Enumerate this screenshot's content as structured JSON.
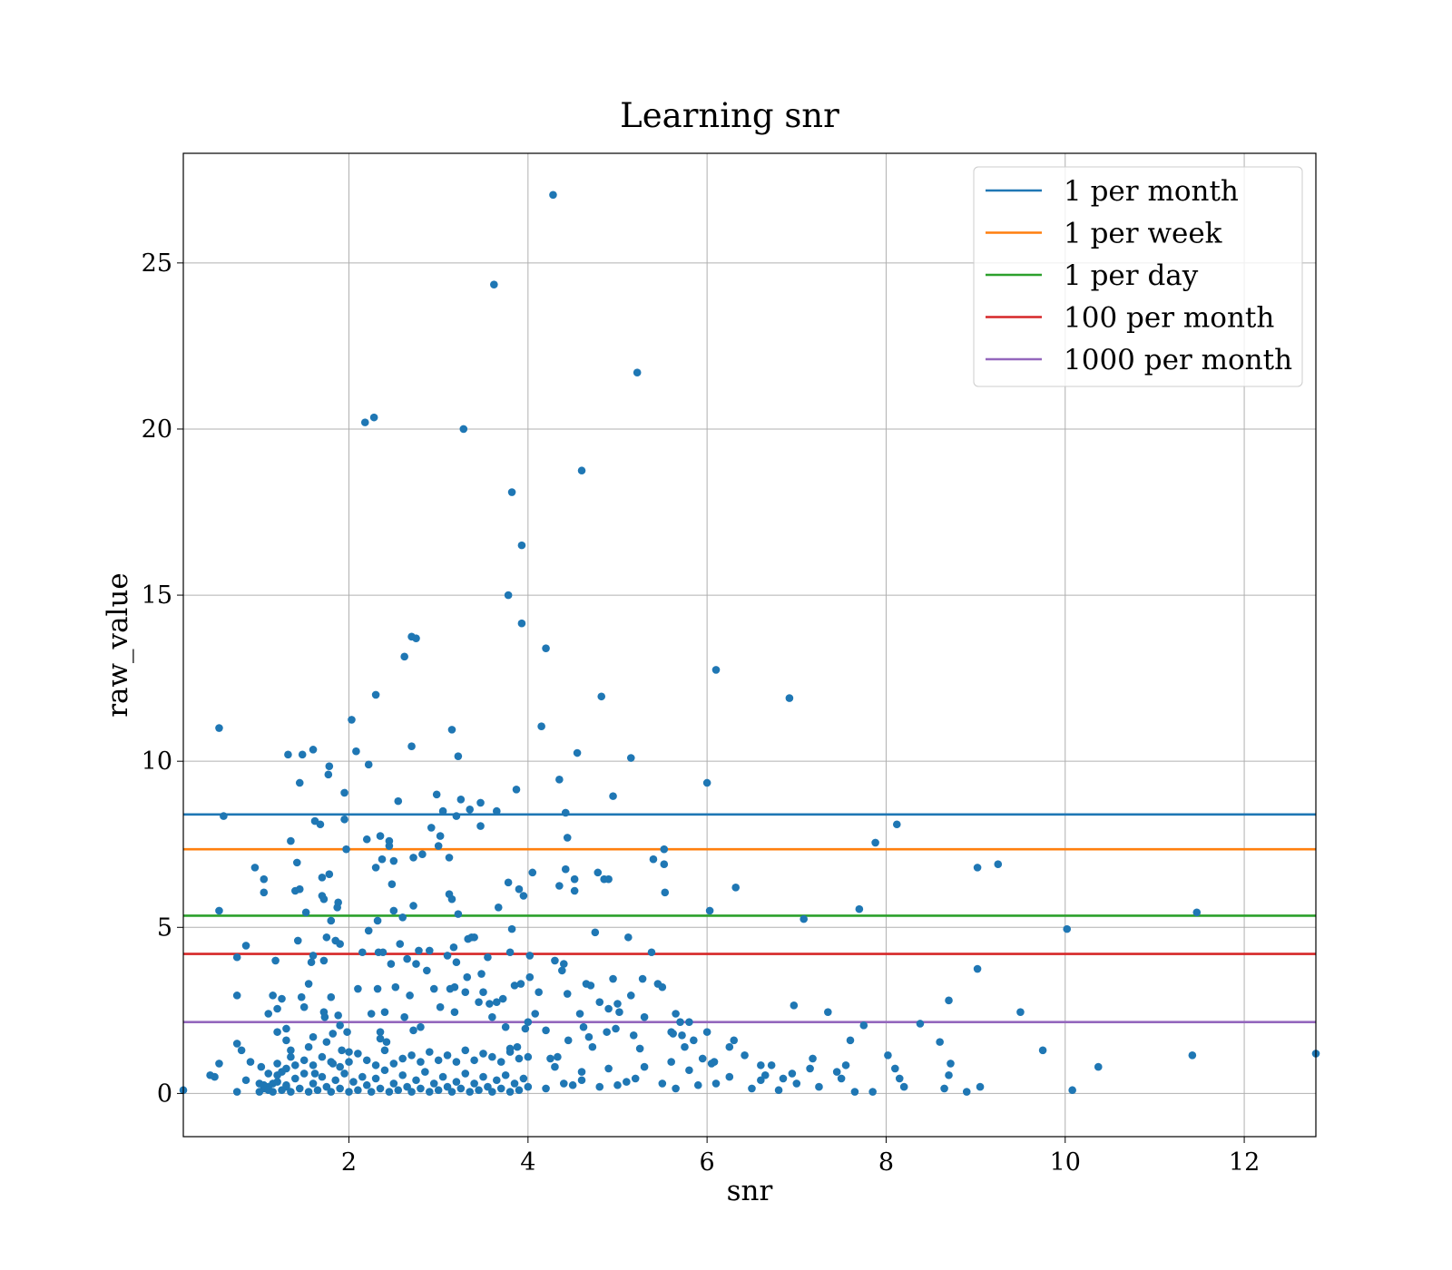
{
  "chart_data": {
    "type": "scatter",
    "title": "Learning snr",
    "xlabel": "snr",
    "ylabel": "raw_value",
    "xlim": [
      0.15,
      12.8
    ],
    "ylim": [
      -1.3,
      28.3
    ],
    "xticks": [
      2,
      4,
      6,
      8,
      10,
      12
    ],
    "yticks": [
      0,
      5,
      10,
      15,
      20,
      25
    ],
    "grid": true,
    "legend_position": "top-right",
    "point_color": "#1f77b4",
    "points": [
      [
        0.15,
        0.1
      ],
      [
        0.55,
        11.0
      ],
      [
        0.6,
        8.35
      ],
      [
        0.55,
        5.5
      ],
      [
        0.75,
        4.1
      ],
      [
        0.85,
        4.45
      ],
      [
        0.75,
        2.95
      ],
      [
        0.5,
        0.5
      ],
      [
        0.55,
        0.9
      ],
      [
        0.45,
        0.55
      ],
      [
        0.75,
        1.5
      ],
      [
        0.8,
        1.3
      ],
      [
        0.75,
        0.05
      ],
      [
        0.85,
        0.4
      ],
      [
        0.9,
        0.95
      ],
      [
        0.95,
        6.8
      ],
      [
        1.0,
        0.3
      ],
      [
        1.05,
        6.45
      ],
      [
        1.05,
        6.05
      ],
      [
        1.02,
        0.8
      ],
      [
        1.05,
        0.15
      ],
      [
        1.1,
        0.2
      ],
      [
        1.15,
        0.3
      ],
      [
        1.1,
        2.4
      ],
      [
        1.15,
        2.95
      ],
      [
        1.18,
        4.0
      ],
      [
        1.2,
        2.55
      ],
      [
        1.25,
        2.85
      ],
      [
        1.2,
        1.85
      ],
      [
        1.3,
        1.95
      ],
      [
        1.3,
        1.6
      ],
      [
        1.25,
        0.65
      ],
      [
        1.35,
        1.1
      ],
      [
        1.3,
        0.2
      ],
      [
        1.35,
        1.3
      ],
      [
        1.2,
        0.55
      ],
      [
        1.32,
        10.2
      ],
      [
        1.35,
        7.6
      ],
      [
        1.4,
        6.1
      ],
      [
        1.42,
        6.95
      ],
      [
        1.43,
        4.6
      ],
      [
        1.45,
        6.15
      ],
      [
        1.47,
        2.9
      ],
      [
        1.45,
        9.35
      ],
      [
        1.48,
        10.2
      ],
      [
        1.5,
        2.6
      ],
      [
        1.52,
        5.45
      ],
      [
        1.55,
        3.3
      ],
      [
        1.55,
        1.4
      ],
      [
        1.58,
        3.95
      ],
      [
        1.6,
        4.15
      ],
      [
        1.6,
        1.7
      ],
      [
        1.62,
        0.6
      ],
      [
        1.6,
        10.35
      ],
      [
        1.62,
        8.2
      ],
      [
        1.68,
        8.1
      ],
      [
        1.7,
        6.5
      ],
      [
        1.7,
        5.95
      ],
      [
        1.72,
        5.85
      ],
      [
        1.72,
        4.0
      ],
      [
        1.72,
        2.45
      ],
      [
        1.73,
        2.3
      ],
      [
        1.75,
        4.7
      ],
      [
        1.75,
        1.55
      ],
      [
        1.77,
        9.6
      ],
      [
        1.78,
        9.85
      ],
      [
        1.78,
        6.6
      ],
      [
        1.8,
        5.2
      ],
      [
        1.8,
        2.9
      ],
      [
        1.82,
        1.8
      ],
      [
        1.82,
        0.9
      ],
      [
        1.85,
        4.6
      ],
      [
        1.87,
        5.6
      ],
      [
        1.88,
        5.75
      ],
      [
        1.88,
        2.35
      ],
      [
        1.9,
        4.5
      ],
      [
        1.9,
        2.05
      ],
      [
        1.92,
        1.3
      ],
      [
        1.95,
        9.05
      ],
      [
        1.95,
        8.25
      ],
      [
        1.97,
        7.35
      ],
      [
        1.98,
        1.85
      ],
      [
        2.0,
        1.25
      ],
      [
        2.03,
        11.25
      ],
      [
        2.08,
        10.3
      ],
      [
        2.1,
        3.15
      ],
      [
        2.15,
        4.25
      ],
      [
        2.18,
        20.2
      ],
      [
        2.2,
        7.65
      ],
      [
        2.22,
        9.9
      ],
      [
        2.22,
        4.9
      ],
      [
        2.25,
        2.4
      ],
      [
        2.28,
        20.35
      ],
      [
        2.3,
        12.0
      ],
      [
        2.3,
        6.8
      ],
      [
        2.32,
        5.2
      ],
      [
        2.33,
        4.25
      ],
      [
        2.32,
        3.15
      ],
      [
        2.35,
        7.75
      ],
      [
        2.35,
        1.65
      ],
      [
        2.35,
        1.85
      ],
      [
        2.37,
        7.05
      ],
      [
        2.38,
        4.25
      ],
      [
        2.4,
        2.45
      ],
      [
        2.42,
        1.55
      ],
      [
        2.45,
        7.6
      ],
      [
        2.45,
        7.45
      ],
      [
        2.47,
        3.9
      ],
      [
        2.48,
        6.3
      ],
      [
        2.5,
        7.0
      ],
      [
        2.5,
        5.5
      ],
      [
        2.52,
        3.2
      ],
      [
        2.55,
        8.8
      ],
      [
        2.57,
        4.5
      ],
      [
        2.6,
        5.3
      ],
      [
        2.62,
        13.15
      ],
      [
        2.62,
        2.3
      ],
      [
        2.65,
        4.05
      ],
      [
        2.68,
        2.95
      ],
      [
        2.7,
        13.75
      ],
      [
        2.7,
        10.45
      ],
      [
        2.72,
        7.1
      ],
      [
        2.72,
        5.65
      ],
      [
        2.72,
        1.9
      ],
      [
        2.75,
        13.7
      ],
      [
        2.75,
        3.9
      ],
      [
        2.78,
        4.3
      ],
      [
        2.8,
        2.0
      ],
      [
        2.82,
        7.2
      ],
      [
        2.87,
        3.7
      ],
      [
        2.9,
        4.3
      ],
      [
        2.92,
        8.0
      ],
      [
        2.95,
        3.15
      ],
      [
        2.98,
        9.0
      ],
      [
        3.0,
        7.45
      ],
      [
        3.02,
        7.75
      ],
      [
        3.02,
        2.6
      ],
      [
        3.05,
        8.5
      ],
      [
        3.1,
        4.15
      ],
      [
        3.12,
        7.1
      ],
      [
        3.12,
        6.0
      ],
      [
        3.13,
        3.15
      ],
      [
        3.15,
        5.85
      ],
      [
        3.15,
        10.95
      ],
      [
        3.17,
        4.4
      ],
      [
        3.18,
        3.2
      ],
      [
        3.18,
        2.45
      ],
      [
        3.2,
        3.95
      ],
      [
        3.2,
        8.35
      ],
      [
        3.22,
        10.15
      ],
      [
        3.22,
        5.4
      ],
      [
        3.25,
        8.85
      ],
      [
        3.28,
        20.0
      ],
      [
        3.3,
        3.05
      ],
      [
        3.32,
        3.5
      ],
      [
        3.33,
        4.65
      ],
      [
        3.35,
        8.55
      ],
      [
        3.37,
        4.7
      ],
      [
        3.4,
        4.7
      ],
      [
        3.45,
        2.75
      ],
      [
        3.47,
        8.75
      ],
      [
        3.47,
        8.05
      ],
      [
        3.48,
        3.6
      ],
      [
        3.5,
        3.05
      ],
      [
        3.55,
        4.1
      ],
      [
        3.57,
        2.7
      ],
      [
        3.6,
        2.3
      ],
      [
        3.62,
        24.35
      ],
      [
        3.65,
        8.5
      ],
      [
        3.65,
        2.75
      ],
      [
        3.67,
        5.6
      ],
      [
        3.72,
        2.85
      ],
      [
        3.75,
        2.0
      ],
      [
        3.78,
        15.0
      ],
      [
        3.78,
        6.35
      ],
      [
        3.8,
        4.25
      ],
      [
        3.8,
        1.35
      ],
      [
        3.82,
        18.1
      ],
      [
        3.82,
        4.95
      ],
      [
        3.85,
        3.25
      ],
      [
        3.87,
        9.15
      ],
      [
        3.88,
        1.4
      ],
      [
        3.9,
        6.15
      ],
      [
        3.92,
        3.3
      ],
      [
        3.93,
        14.15
      ],
      [
        3.93,
        16.5
      ],
      [
        3.95,
        5.95
      ],
      [
        3.97,
        1.95
      ],
      [
        4.0,
        2.15
      ],
      [
        4.02,
        4.15
      ],
      [
        4.02,
        3.5
      ],
      [
        4.05,
        6.65
      ],
      [
        4.08,
        2.4
      ],
      [
        4.12,
        3.05
      ],
      [
        4.15,
        11.05
      ],
      [
        4.2,
        13.4
      ],
      [
        4.2,
        1.9
      ],
      [
        4.25,
        1.05
      ],
      [
        4.28,
        27.05
      ],
      [
        4.3,
        4.0
      ],
      [
        4.33,
        1.1
      ],
      [
        4.35,
        9.45
      ],
      [
        4.35,
        6.25
      ],
      [
        4.38,
        3.7
      ],
      [
        4.4,
        3.9
      ],
      [
        4.42,
        6.75
      ],
      [
        4.42,
        8.45
      ],
      [
        4.44,
        7.7
      ],
      [
        4.44,
        3.0
      ],
      [
        4.45,
        1.6
      ],
      [
        4.52,
        6.45
      ],
      [
        4.52,
        6.1
      ],
      [
        4.55,
        10.25
      ],
      [
        4.58,
        2.4
      ],
      [
        4.6,
        18.75
      ],
      [
        4.62,
        2.0
      ],
      [
        4.65,
        3.3
      ],
      [
        4.68,
        1.7
      ],
      [
        4.7,
        3.25
      ],
      [
        4.72,
        1.4
      ],
      [
        4.75,
        4.85
      ],
      [
        4.78,
        6.65
      ],
      [
        4.8,
        2.75
      ],
      [
        4.82,
        11.95
      ],
      [
        4.85,
        6.45
      ],
      [
        4.88,
        1.85
      ],
      [
        4.9,
        6.45
      ],
      [
        4.9,
        2.55
      ],
      [
        4.95,
        8.95
      ],
      [
        4.95,
        3.45
      ],
      [
        4.98,
        1.95
      ],
      [
        5.0,
        2.7
      ],
      [
        5.02,
        2.45
      ],
      [
        5.12,
        4.7
      ],
      [
        5.15,
        10.1
      ],
      [
        5.15,
        2.95
      ],
      [
        5.18,
        1.75
      ],
      [
        5.22,
        21.7
      ],
      [
        5.25,
        1.35
      ],
      [
        5.28,
        3.45
      ],
      [
        5.3,
        2.3
      ],
      [
        5.38,
        4.25
      ],
      [
        5.4,
        7.05
      ],
      [
        5.45,
        3.3
      ],
      [
        5.5,
        3.2
      ],
      [
        5.52,
        7.35
      ],
      [
        5.52,
        6.9
      ],
      [
        5.53,
        6.05
      ],
      [
        5.6,
        1.85
      ],
      [
        5.62,
        1.8
      ],
      [
        5.65,
        2.4
      ],
      [
        5.7,
        2.15
      ],
      [
        5.72,
        1.75
      ],
      [
        5.75,
        1.4
      ],
      [
        5.8,
        2.15
      ],
      [
        5.85,
        1.6
      ],
      [
        5.95,
        1.05
      ],
      [
        6.0,
        9.35
      ],
      [
        6.0,
        1.85
      ],
      [
        6.03,
        5.5
      ],
      [
        6.08,
        0.95
      ],
      [
        6.1,
        12.75
      ],
      [
        6.25,
        1.4
      ],
      [
        6.3,
        1.6
      ],
      [
        6.32,
        6.2
      ],
      [
        6.42,
        1.15
      ],
      [
        6.6,
        0.85
      ],
      [
        6.65,
        0.55
      ],
      [
        6.72,
        0.85
      ],
      [
        6.85,
        0.45
      ],
      [
        6.92,
        11.9
      ],
      [
        6.97,
        2.65
      ],
      [
        7.08,
        5.25
      ],
      [
        7.18,
        1.05
      ],
      [
        7.35,
        2.45
      ],
      [
        7.6,
        1.6
      ],
      [
        7.7,
        5.55
      ],
      [
        7.75,
        2.05
      ],
      [
        7.88,
        7.55
      ],
      [
        8.02,
        1.15
      ],
      [
        8.12,
        8.1
      ],
      [
        8.15,
        0.45
      ],
      [
        8.38,
        2.1
      ],
      [
        8.6,
        1.55
      ],
      [
        8.7,
        2.8
      ],
      [
        8.72,
        0.9
      ],
      [
        9.02,
        6.8
      ],
      [
        9.02,
        3.75
      ],
      [
        9.25,
        6.9
      ],
      [
        9.5,
        2.45
      ],
      [
        9.75,
        1.3
      ],
      [
        10.02,
        4.95
      ],
      [
        10.08,
        0.1
      ],
      [
        10.37,
        0.8
      ],
      [
        11.42,
        1.15
      ],
      [
        11.47,
        5.45
      ],
      [
        12.8,
        1.2
      ],
      [
        1.0,
        0.05
      ],
      [
        1.05,
        0.25
      ],
      [
        1.1,
        0.1
      ],
      [
        1.15,
        0.05
      ],
      [
        1.2,
        0.35
      ],
      [
        1.25,
        0.1
      ],
      [
        1.3,
        0.25
      ],
      [
        1.35,
        0.05
      ],
      [
        1.4,
        0.45
      ],
      [
        1.45,
        0.15
      ],
      [
        1.5,
        0.6
      ],
      [
        1.55,
        0.05
      ],
      [
        1.6,
        0.3
      ],
      [
        1.65,
        0.1
      ],
      [
        1.7,
        0.5
      ],
      [
        1.75,
        0.2
      ],
      [
        1.8,
        0.05
      ],
      [
        1.85,
        0.4
      ],
      [
        1.9,
        0.15
      ],
      [
        1.95,
        0.6
      ],
      [
        2.0,
        0.05
      ],
      [
        2.05,
        0.35
      ],
      [
        2.1,
        0.1
      ],
      [
        2.15,
        0.5
      ],
      [
        2.2,
        0.25
      ],
      [
        2.25,
        0.05
      ],
      [
        2.3,
        0.45
      ],
      [
        2.35,
        0.15
      ],
      [
        2.4,
        0.7
      ],
      [
        2.45,
        0.05
      ],
      [
        2.5,
        0.3
      ],
      [
        2.55,
        0.1
      ],
      [
        2.6,
        0.55
      ],
      [
        2.65,
        0.2
      ],
      [
        2.7,
        0.05
      ],
      [
        2.75,
        0.4
      ],
      [
        2.8,
        0.15
      ],
      [
        2.85,
        0.65
      ],
      [
        2.9,
        0.05
      ],
      [
        2.95,
        0.3
      ],
      [
        3.0,
        0.1
      ],
      [
        3.05,
        0.5
      ],
      [
        3.1,
        0.2
      ],
      [
        3.15,
        0.05
      ],
      [
        3.2,
        0.35
      ],
      [
        3.25,
        0.15
      ],
      [
        3.3,
        0.6
      ],
      [
        3.35,
        0.05
      ],
      [
        3.4,
        0.3
      ],
      [
        3.45,
        0.1
      ],
      [
        3.5,
        0.5
      ],
      [
        3.55,
        0.2
      ],
      [
        3.6,
        0.05
      ],
      [
        3.65,
        0.4
      ],
      [
        3.7,
        0.15
      ],
      [
        3.75,
        0.55
      ],
      [
        3.8,
        0.05
      ],
      [
        3.85,
        0.3
      ],
      [
        3.9,
        0.1
      ],
      [
        3.95,
        0.45
      ],
      [
        4.0,
        0.2
      ],
      [
        4.2,
        0.15
      ],
      [
        4.4,
        0.3
      ],
      [
        4.5,
        0.25
      ],
      [
        4.6,
        0.4
      ],
      [
        4.8,
        0.2
      ],
      [
        5.0,
        0.25
      ],
      [
        5.1,
        0.35
      ],
      [
        5.2,
        0.45
      ],
      [
        5.5,
        0.3
      ],
      [
        5.65,
        0.15
      ],
      [
        5.9,
        0.25
      ],
      [
        6.1,
        0.3
      ],
      [
        6.5,
        0.15
      ],
      [
        6.8,
        0.1
      ],
      [
        7.0,
        0.3
      ],
      [
        7.25,
        0.2
      ],
      [
        7.5,
        0.45
      ],
      [
        7.65,
        0.05
      ],
      [
        7.85,
        0.05
      ],
      [
        8.2,
        0.2
      ],
      [
        8.65,
        0.15
      ],
      [
        8.9,
        0.05
      ],
      [
        9.05,
        0.2
      ],
      [
        1.1,
        0.6
      ],
      [
        1.2,
        0.9
      ],
      [
        1.3,
        0.75
      ],
      [
        1.4,
        0.85
      ],
      [
        1.5,
        1.0
      ],
      [
        1.6,
        0.85
      ],
      [
        1.7,
        1.1
      ],
      [
        1.8,
        0.95
      ],
      [
        1.9,
        0.8
      ],
      [
        2.0,
        0.95
      ],
      [
        2.1,
        1.2
      ],
      [
        2.2,
        1.0
      ],
      [
        2.3,
        0.85
      ],
      [
        2.4,
        1.3
      ],
      [
        2.5,
        0.9
      ],
      [
        2.6,
        1.05
      ],
      [
        2.7,
        1.15
      ],
      [
        2.8,
        0.95
      ],
      [
        2.9,
        1.25
      ],
      [
        3.0,
        1.0
      ],
      [
        3.1,
        1.15
      ],
      [
        3.2,
        0.95
      ],
      [
        3.3,
        1.3
      ],
      [
        3.4,
        1.0
      ],
      [
        3.5,
        1.2
      ],
      [
        3.6,
        1.1
      ],
      [
        3.7,
        0.95
      ],
      [
        3.8,
        1.25
      ],
      [
        3.9,
        1.05
      ],
      [
        4.0,
        1.1
      ],
      [
        4.3,
        0.8
      ],
      [
        4.6,
        0.65
      ],
      [
        4.9,
        0.75
      ],
      [
        5.3,
        0.8
      ],
      [
        5.6,
        0.95
      ],
      [
        5.8,
        0.7
      ],
      [
        6.05,
        0.9
      ],
      [
        6.25,
        0.5
      ],
      [
        6.6,
        0.4
      ],
      [
        6.95,
        0.6
      ],
      [
        7.15,
        0.75
      ],
      [
        7.45,
        0.65
      ],
      [
        7.55,
        0.85
      ],
      [
        8.1,
        0.75
      ],
      [
        8.7,
        0.55
      ]
    ],
    "hlines": [
      {
        "name": "1 per month",
        "y": 8.4,
        "color": "#1f77b4"
      },
      {
        "name": "1 per week",
        "y": 7.35,
        "color": "#ff7f0e"
      },
      {
        "name": "1 per day",
        "y": 5.35,
        "color": "#2ca02c"
      },
      {
        "name": "100 per month",
        "y": 4.2,
        "color": "#d62728"
      },
      {
        "name": "1000 per month",
        "y": 2.15,
        "color": "#9467bd"
      }
    ]
  }
}
